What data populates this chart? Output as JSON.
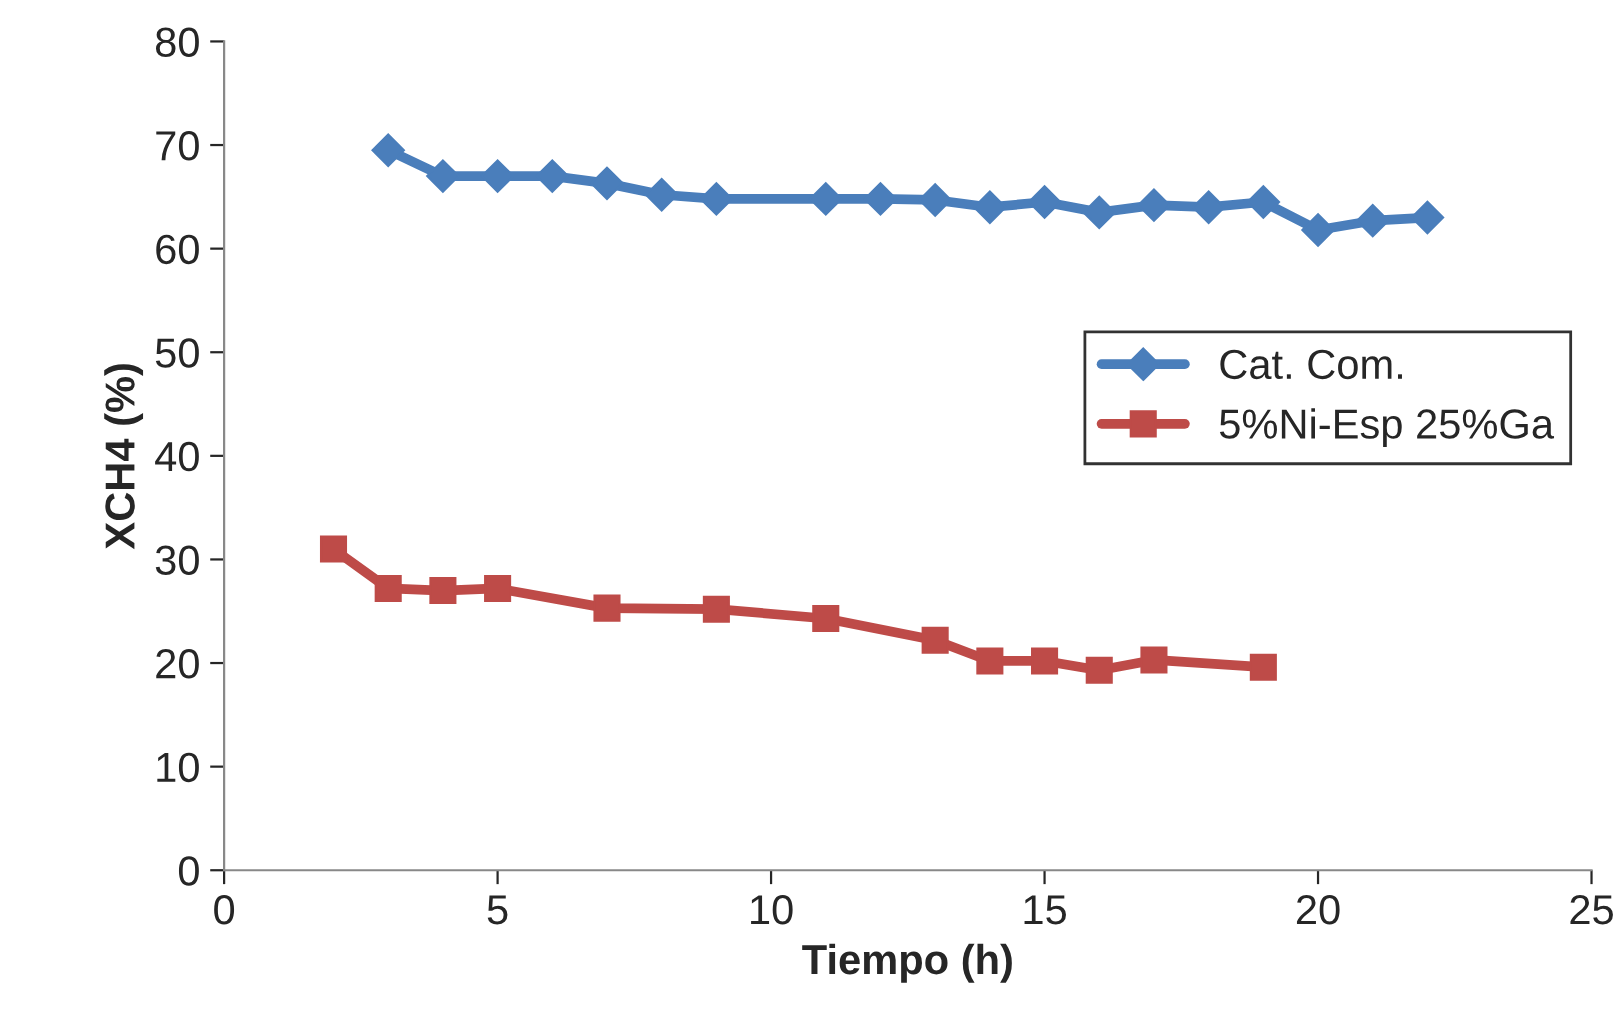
{
  "chart_data": {
    "type": "line",
    "xlabel": "Tiempo (h)",
    "ylabel": "XCH4 (%)",
    "xlim": [
      0,
      25
    ],
    "xticks": [
      0,
      5,
      10,
      15,
      20,
      25
    ],
    "ylim": [
      0,
      80
    ],
    "yticks": [
      0,
      10,
      20,
      30,
      40,
      50,
      60,
      70,
      80
    ],
    "grid": false,
    "legend": "right",
    "line_style": "solid",
    "series": [
      {
        "name": "Cat. Com.",
        "color": "#4a7ebb",
        "marker": "diamond",
        "x": [
          3,
          4,
          5,
          6,
          7,
          8,
          9,
          11,
          12,
          13,
          14,
          15,
          16,
          17,
          18,
          19,
          20,
          21,
          22
        ],
        "values": [
          69.5,
          67,
          67,
          67,
          66.3,
          65.2,
          64.8,
          64.8,
          64.8,
          64.7,
          64,
          64.5,
          63.5,
          64.2,
          64,
          64.5,
          61.8,
          62.7,
          63
        ]
      },
      {
        "name": "5%Ni-Esp 25%Ga",
        "color": "#be4b48",
        "marker": "square",
        "x": [
          2,
          3,
          4,
          5,
          7,
          9,
          11,
          13,
          14,
          15,
          16,
          17,
          19
        ],
        "values": [
          31,
          27.2,
          27,
          27.2,
          25.3,
          25.2,
          24.3,
          22.2,
          20.2,
          20.2,
          19.3,
          20.3,
          19.6
        ]
      }
    ]
  }
}
